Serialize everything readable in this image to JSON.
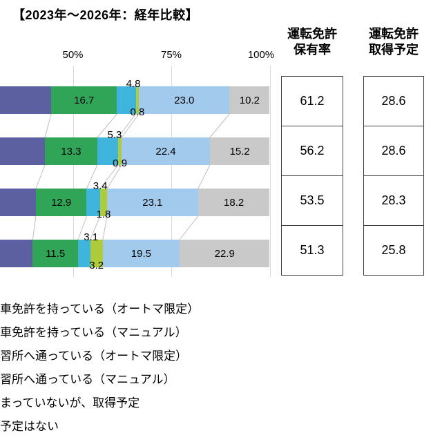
{
  "title": "【2023年～2026年：経年比較】",
  "chart_data": {
    "type": "bar",
    "orientation": "horizontal",
    "stacked": true,
    "note": "left portion of chart (0-31%) and row category labels are cropped off-screen",
    "x_ticks": [
      {
        "label": "50%",
        "value": 50
      },
      {
        "label": "75%",
        "value": 75
      },
      {
        "label": "100%",
        "value": 100
      }
    ],
    "rows": 4,
    "series": [
      {
        "name": "車免許を持っている（オートマ限定）",
        "color": "#5C5FA0",
        "label_style": "hidden",
        "values": [
          44.5,
          42.9,
          40.6,
          39.8
        ]
      },
      {
        "name": "車免許を持っている（マニュアル）",
        "color": "#30A457",
        "label_style": "inside",
        "values": [
          16.7,
          13.3,
          12.9,
          11.5
        ]
      },
      {
        "name": "習所へ通っている（オートマ限定）",
        "color": "#3FB5DE",
        "label_style": "above",
        "values": [
          4.8,
          5.3,
          3.4,
          3.1
        ]
      },
      {
        "name": "習所へ通っている（マニュアル）",
        "color": "#AECB3C",
        "label_style": "below",
        "values": [
          0.8,
          0.9,
          1.8,
          3.2
        ]
      },
      {
        "name": "まっていないが、取得予定",
        "color": "#A2CAEC",
        "label_style": "inside",
        "values": [
          23.0,
          22.4,
          23.1,
          19.5
        ]
      },
      {
        "name": "予定はない",
        "color": "#C9C9C9",
        "label_style": "inside",
        "values": [
          10.2,
          15.2,
          18.2,
          22.9
        ]
      }
    ],
    "gridline_color": "#D9D9D9",
    "connector_color": "#BFBFBF"
  },
  "summary_table": {
    "columns": [
      {
        "header": [
          "運転免許",
          "保有率"
        ],
        "values": [
          "61.2",
          "56.2",
          "53.5",
          "51.3"
        ]
      },
      {
        "header": [
          "運転免許",
          "取得予定"
        ],
        "values": [
          "28.6",
          "28.6",
          "28.3",
          "25.8"
        ]
      }
    ]
  },
  "legend": {
    "items": [
      "車免許を持っている（オートマ限定）",
      "車免許を持っている（マニュアル）",
      "習所へ通っている（オートマ限定）",
      "習所へ通っている（マニュアル）",
      "まっていないが、取得予定",
      "予定はない"
    ]
  }
}
